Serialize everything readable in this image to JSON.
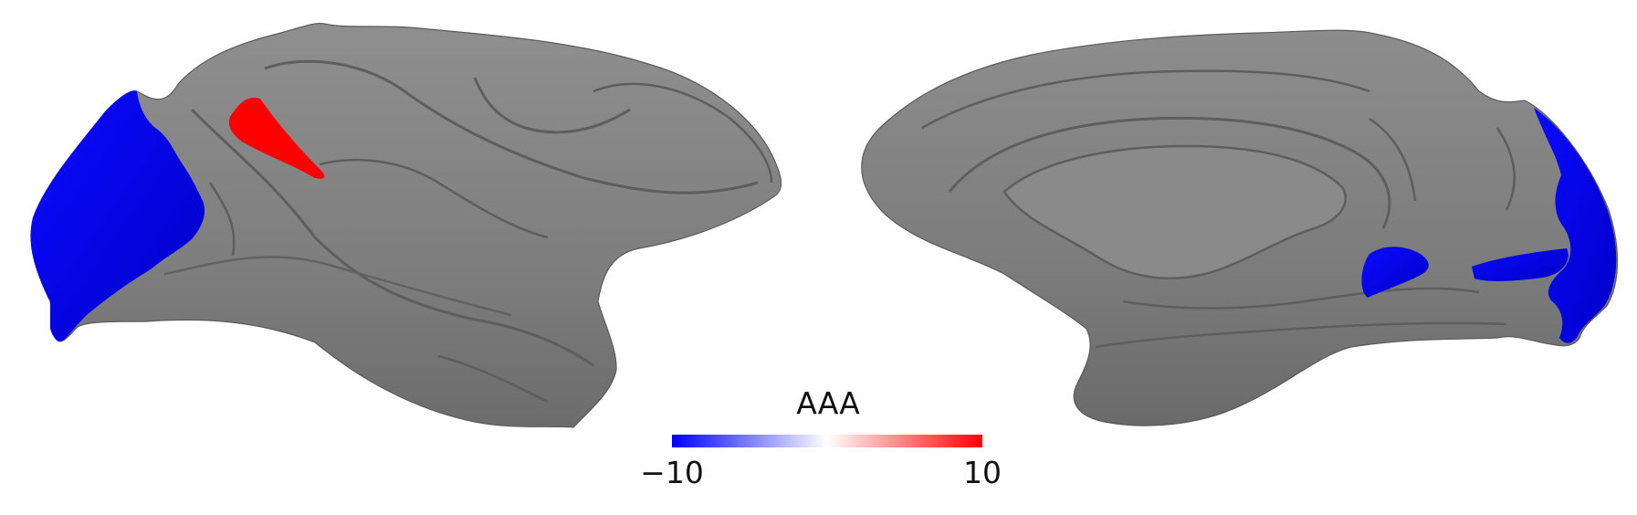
{
  "figure": {
    "views": [
      {
        "name": "lateral",
        "hemisphere": "left"
      },
      {
        "name": "medial",
        "hemisphere": "left"
      }
    ],
    "surface_color": "#808080",
    "regions": [
      {
        "view": "lateral",
        "name": "occipital",
        "value": -10,
        "color": "#0000ff"
      },
      {
        "view": "lateral",
        "name": "central",
        "value": 10,
        "color": "#ff0000"
      },
      {
        "view": "medial",
        "name": "occipital",
        "value": -10,
        "color": "#0000ff"
      },
      {
        "view": "medial",
        "name": "ventral",
        "value": -10,
        "color": "#0000ff"
      }
    ]
  },
  "colorbar": {
    "title": "AAA",
    "min_label": "−10",
    "max_label": "10",
    "min": -10,
    "max": 10,
    "colors": [
      "#0000ff",
      "#ffffff",
      "#ff0000"
    ]
  }
}
